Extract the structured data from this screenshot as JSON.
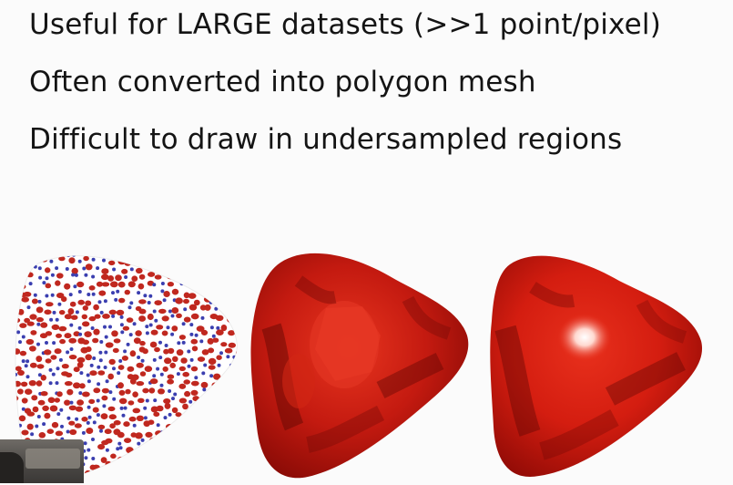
{
  "bullets": [
    "Useful for LARGE datasets (>>1 point/pixel)",
    "Often converted into polygon mesh",
    "Difficult to draw in undersampled regions"
  ],
  "figures": [
    {
      "name": "point-cloud-rendering",
      "colors": {
        "point_red": "#c0281f",
        "point_blue": "#3b3fb0",
        "surface": "#ffffff"
      }
    },
    {
      "name": "flat-shaded-mesh",
      "colors": {
        "base": "#c41a10",
        "dark": "#6e0805",
        "light": "#e8351f"
      }
    },
    {
      "name": "smooth-shaded-mesh",
      "colors": {
        "base": "#d41d10",
        "dark": "#6a0603",
        "highlight": "#ffffff"
      }
    }
  ],
  "overlay": {
    "webcam_thumbnail": "presenter-video-corner"
  }
}
